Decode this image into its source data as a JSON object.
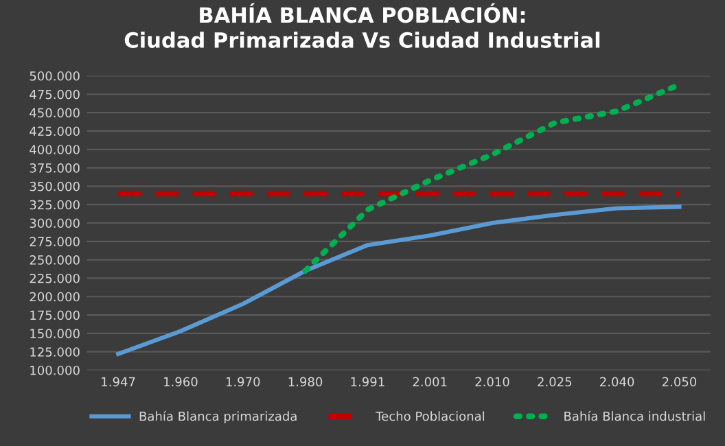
{
  "chart_data": {
    "type": "line",
    "title": "BAHÍA BLANCA POBLACIÓN:\nCiudad Primarizada Vs Ciudad Industrial",
    "categories": [
      "1.947",
      "1.960",
      "1.970",
      "1.980",
      "1.991",
      "2.001",
      "2.010",
      "2.025",
      "2.040",
      "2.050"
    ],
    "series": [
      {
        "name": "Bahía Blanca primarizada",
        "color": "#5b9bd5",
        "line_style": "solid",
        "values": [
          122000,
          153000,
          190000,
          235000,
          270000,
          283000,
          300000,
          311000,
          320000,
          322000
        ]
      },
      {
        "name": "Techo Poblacional",
        "color": "#c00000",
        "line_style": "dashed",
        "values": [
          340000,
          340000,
          340000,
          340000,
          340000,
          340000,
          340000,
          340000,
          340000,
          340000
        ]
      },
      {
        "name": "Bahía Blanca industrial",
        "color": "#00b050",
        "line_style": "dotted",
        "values": [
          null,
          null,
          null,
          235000,
          318000,
          358000,
          393000,
          436000,
          452000,
          488000
        ]
      }
    ],
    "ylim": [
      100000,
      500000
    ],
    "yticks": [
      {
        "value": 100000,
        "label": "100.000"
      },
      {
        "value": 125000,
        "label": "125.000"
      },
      {
        "value": 150000,
        "label": "150.000"
      },
      {
        "value": 175000,
        "label": "175.000"
      },
      {
        "value": 200000,
        "label": "200.000"
      },
      {
        "value": 225000,
        "label": "225.000"
      },
      {
        "value": 250000,
        "label": "250.000"
      },
      {
        "value": 275000,
        "label": "275.000"
      },
      {
        "value": 300000,
        "label": "300.000"
      },
      {
        "value": 325000,
        "label": "325.000"
      },
      {
        "value": 350000,
        "label": "350.000"
      },
      {
        "value": 375000,
        "label": "375.000"
      },
      {
        "value": 400000,
        "label": "400.000"
      },
      {
        "value": 425000,
        "label": "425.000"
      },
      {
        "value": 450000,
        "label": "450.000"
      },
      {
        "value": 475000,
        "label": "475.000"
      },
      {
        "value": 500000,
        "label": "500.000"
      }
    ],
    "grid": "y",
    "legend": "bottom",
    "marker": "none"
  }
}
